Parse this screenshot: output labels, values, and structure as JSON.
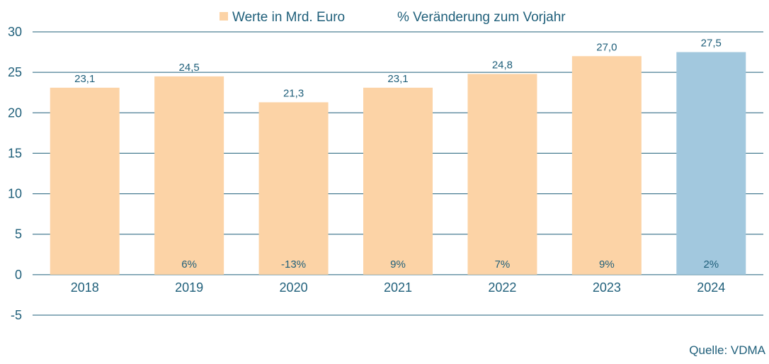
{
  "chart_data": {
    "type": "bar",
    "categories": [
      "2018",
      "2019",
      "2020",
      "2021",
      "2022",
      "2023",
      "2024"
    ],
    "series": [
      {
        "name": "Werte in Mrd. Euro",
        "values": [
          23.1,
          24.5,
          21.3,
          23.1,
          24.8,
          27.0,
          27.5
        ],
        "value_labels": [
          "23,1",
          "24,5",
          "21,3",
          "23,1",
          "24,8",
          "27,0",
          "27,5"
        ]
      },
      {
        "name": "% Veränderung zum Vorjahr",
        "labels": [
          "",
          "6%",
          "-13%",
          "9%",
          "7%",
          "9%",
          "2%"
        ]
      }
    ],
    "bar_colors": [
      "#fcd3a6",
      "#fcd3a6",
      "#fcd3a6",
      "#fcd3a6",
      "#fcd3a6",
      "#fcd3a6",
      "#a2c8de"
    ],
    "ylim": [
      -5,
      30
    ],
    "yticks": [
      -5,
      0,
      5,
      10,
      15,
      20,
      25,
      30
    ],
    "grid": true,
    "legend_position": "top-center",
    "title": "",
    "xlabel": "",
    "ylabel": "",
    "source": "Quelle: VDMA"
  },
  "colors": {
    "bar": "#fcd3a6",
    "bar_highlight": "#a2c8de",
    "gridline": "#1f5f7a",
    "text": "#1f5f7a"
  }
}
